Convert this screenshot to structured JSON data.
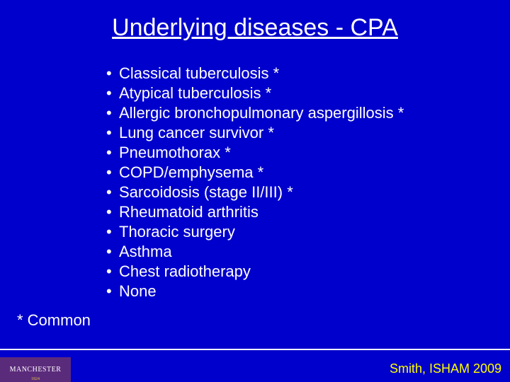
{
  "background_color": "#0000cc",
  "text_color": "#ffffff",
  "accent_color": "#ffff00",
  "font_family": "Comic Sans MS",
  "title": {
    "text": "Underlying diseases - CPA",
    "fontsize": 34,
    "underline": true
  },
  "bullets": {
    "fontsize": 22,
    "line_height": 28,
    "items": [
      "Classical tuberculosis *",
      "Atypical tuberculosis *",
      "Allergic bronchopulmonary aspergillosis *",
      "Lung cancer survivor *",
      "Pneumothorax *",
      "COPD/emphysema *",
      "Sarcoidosis (stage II/III) *",
      "Rheumatoid arthritis",
      "Thoracic surgery",
      "Asthma",
      "Chest radiotherapy",
      "None"
    ]
  },
  "footnote": "* Common",
  "logo": {
    "text": "MANCHESTER",
    "year": "1824",
    "bg_color": "#5b2b7b",
    "year_color": "#e0c040"
  },
  "citation": "Smith, ISHAM 2009"
}
